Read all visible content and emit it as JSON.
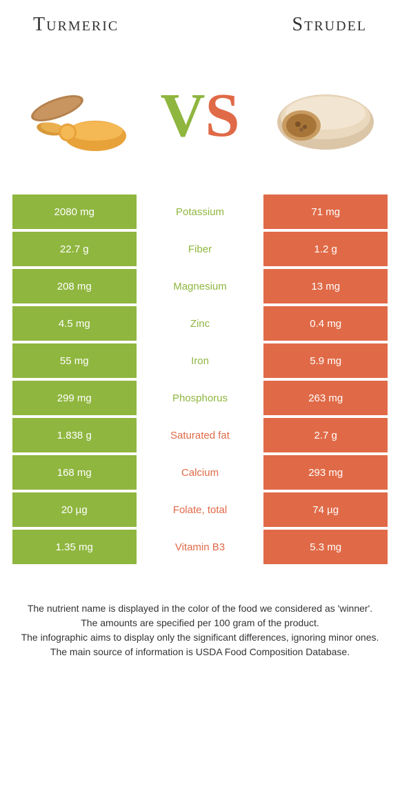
{
  "header": {
    "left_title": "Turmeric",
    "right_title": "Strudel"
  },
  "vs": {
    "v": "V",
    "s": "S"
  },
  "colors": {
    "left": "#8fb63f",
    "right": "#e06a47",
    "mid_left_text": "#8fb63f",
    "mid_right_text": "#e06a47"
  },
  "rows": [
    {
      "left": "2080 mg",
      "nutrient": "Potassium",
      "right": "71 mg",
      "winner": "left"
    },
    {
      "left": "22.7 g",
      "nutrient": "Fiber",
      "right": "1.2 g",
      "winner": "left"
    },
    {
      "left": "208 mg",
      "nutrient": "Magnesium",
      "right": "13 mg",
      "winner": "left"
    },
    {
      "left": "4.5 mg",
      "nutrient": "Zinc",
      "right": "0.4 mg",
      "winner": "left"
    },
    {
      "left": "55 mg",
      "nutrient": "Iron",
      "right": "5.9 mg",
      "winner": "left"
    },
    {
      "left": "299 mg",
      "nutrient": "Phosphorus",
      "right": "263 mg",
      "winner": "left"
    },
    {
      "left": "1.838 g",
      "nutrient": "Saturated fat",
      "right": "2.7 g",
      "winner": "right"
    },
    {
      "left": "168 mg",
      "nutrient": "Calcium",
      "right": "293 mg",
      "winner": "right"
    },
    {
      "left": "20 µg",
      "nutrient": "Folate, total",
      "right": "74 µg",
      "winner": "right"
    },
    {
      "left": "1.35 mg",
      "nutrient": "Vitamin B3",
      "right": "5.3 mg",
      "winner": "right"
    }
  ],
  "footnotes": {
    "l1": "The nutrient name is displayed in the color of the food we considered as 'winner'.",
    "l2": "The amounts are specified per 100 gram of the product.",
    "l3": "The infographic aims to display only the significant differences, ignoring minor ones.",
    "l4": "The main source of information is USDA Food Composition Database."
  }
}
